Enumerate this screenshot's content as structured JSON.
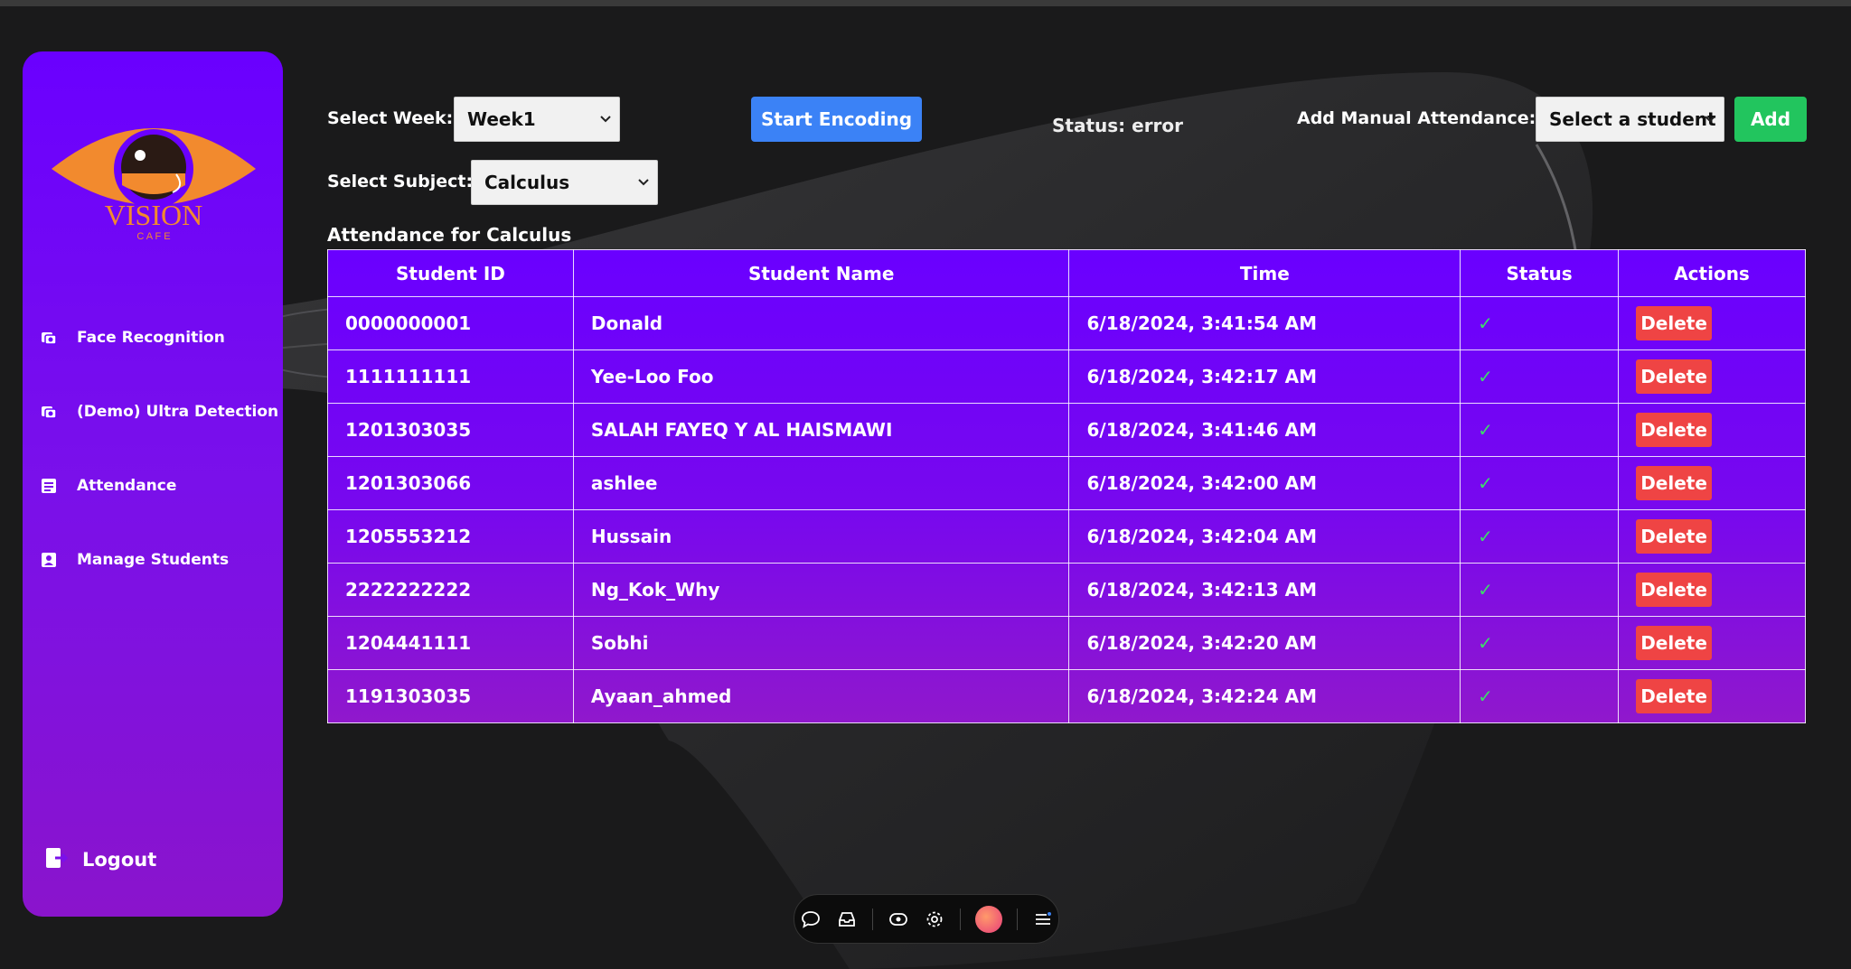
{
  "sidebar": {
    "logo_text": "VISION",
    "logo_subtext": "C A F E",
    "items": [
      {
        "label": "Face Recognition",
        "icon": "camera-icon"
      },
      {
        "label": "(Demo) Ultra Detection",
        "icon": "camera-icon"
      },
      {
        "label": "Attendance",
        "icon": "list-icon"
      },
      {
        "label": "Manage Students",
        "icon": "contact-icon"
      }
    ],
    "logout_label": "Logout"
  },
  "controls": {
    "week_label": "Select Week:",
    "week_value": "Week1",
    "subject_label": "Select Subject:",
    "subject_value": "Calculus",
    "start_encoding_label": "Start Encoding",
    "status_text": "Status: error",
    "manual_label": "Add Manual Attendance:",
    "student_select_value": "Select a student",
    "add_label": "Add"
  },
  "attendance": {
    "title": "Attendance for Calculus",
    "columns": [
      "Student ID",
      "Student Name",
      "Time",
      "Status",
      "Actions"
    ],
    "delete_label": "Delete",
    "status_glyph": "✓",
    "rows": [
      {
        "id": "0000000001",
        "name": "Donald",
        "time": "6/18/2024, 3:41:54 AM"
      },
      {
        "id": "1111111111",
        "name": "Yee-Loo Foo",
        "time": "6/18/2024, 3:42:17 AM"
      },
      {
        "id": "1201303035",
        "name": "SALAH FAYEQ Y AL HAISMAWI",
        "time": "6/18/2024, 3:41:46 AM"
      },
      {
        "id": "1201303066",
        "name": "ashlee",
        "time": "6/18/2024, 3:42:00 AM"
      },
      {
        "id": "1205553212",
        "name": "Hussain",
        "time": "6/18/2024, 3:42:04 AM"
      },
      {
        "id": "2222222222",
        "name": "Ng_Kok_Why",
        "time": "6/18/2024, 3:42:13 AM"
      },
      {
        "id": "1204441111",
        "name": "Sobhi",
        "time": "6/18/2024, 3:42:20 AM"
      },
      {
        "id": "1191303035",
        "name": "Ayaan_ahmed",
        "time": "6/18/2024, 3:42:24 AM"
      }
    ]
  },
  "colors": {
    "sidebar_top": "#6a00ff",
    "sidebar_bottom": "#8a14cc",
    "primary_button": "#3b82f6",
    "add_button": "#22c55e",
    "delete_button": "#ef4444",
    "check": "#3ddc6a",
    "logo_orange": "#f28a2e"
  },
  "toolbar": {
    "icons": [
      "chat-icon",
      "inbox-icon",
      "eye-icon",
      "settings-icon",
      "avatar",
      "menu-icon"
    ]
  }
}
